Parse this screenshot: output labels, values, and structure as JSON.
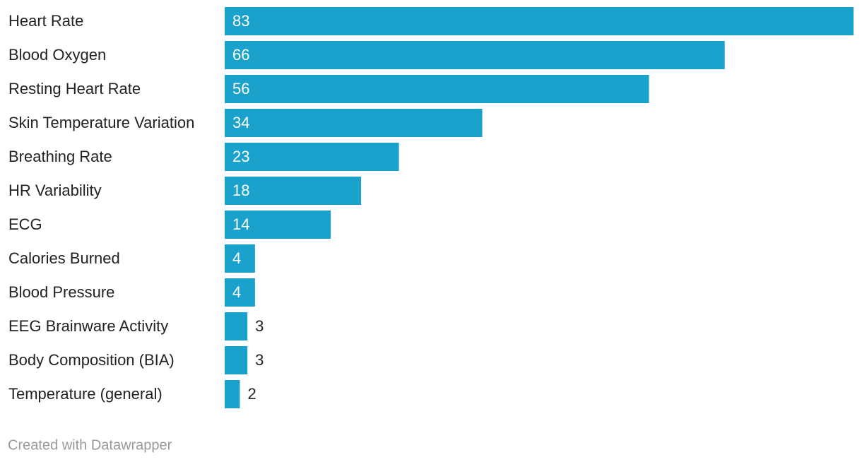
{
  "chart_data": {
    "type": "bar",
    "orientation": "horizontal",
    "categories": [
      "Heart Rate",
      "Blood Oxygen",
      "Resting Heart Rate",
      "Skin Temperature Variation",
      "Breathing Rate",
      "HR Variability",
      "ECG",
      "Calories Burned",
      "Blood Pressure",
      "EEG Brainware Activity",
      "Body Composition (BIA)",
      "Temperature (general)"
    ],
    "values": [
      83,
      66,
      56,
      34,
      23,
      18,
      14,
      4,
      4,
      3,
      3,
      2
    ],
    "color": "#1aa1cc"
  },
  "footer": "Created with Datawrapper"
}
